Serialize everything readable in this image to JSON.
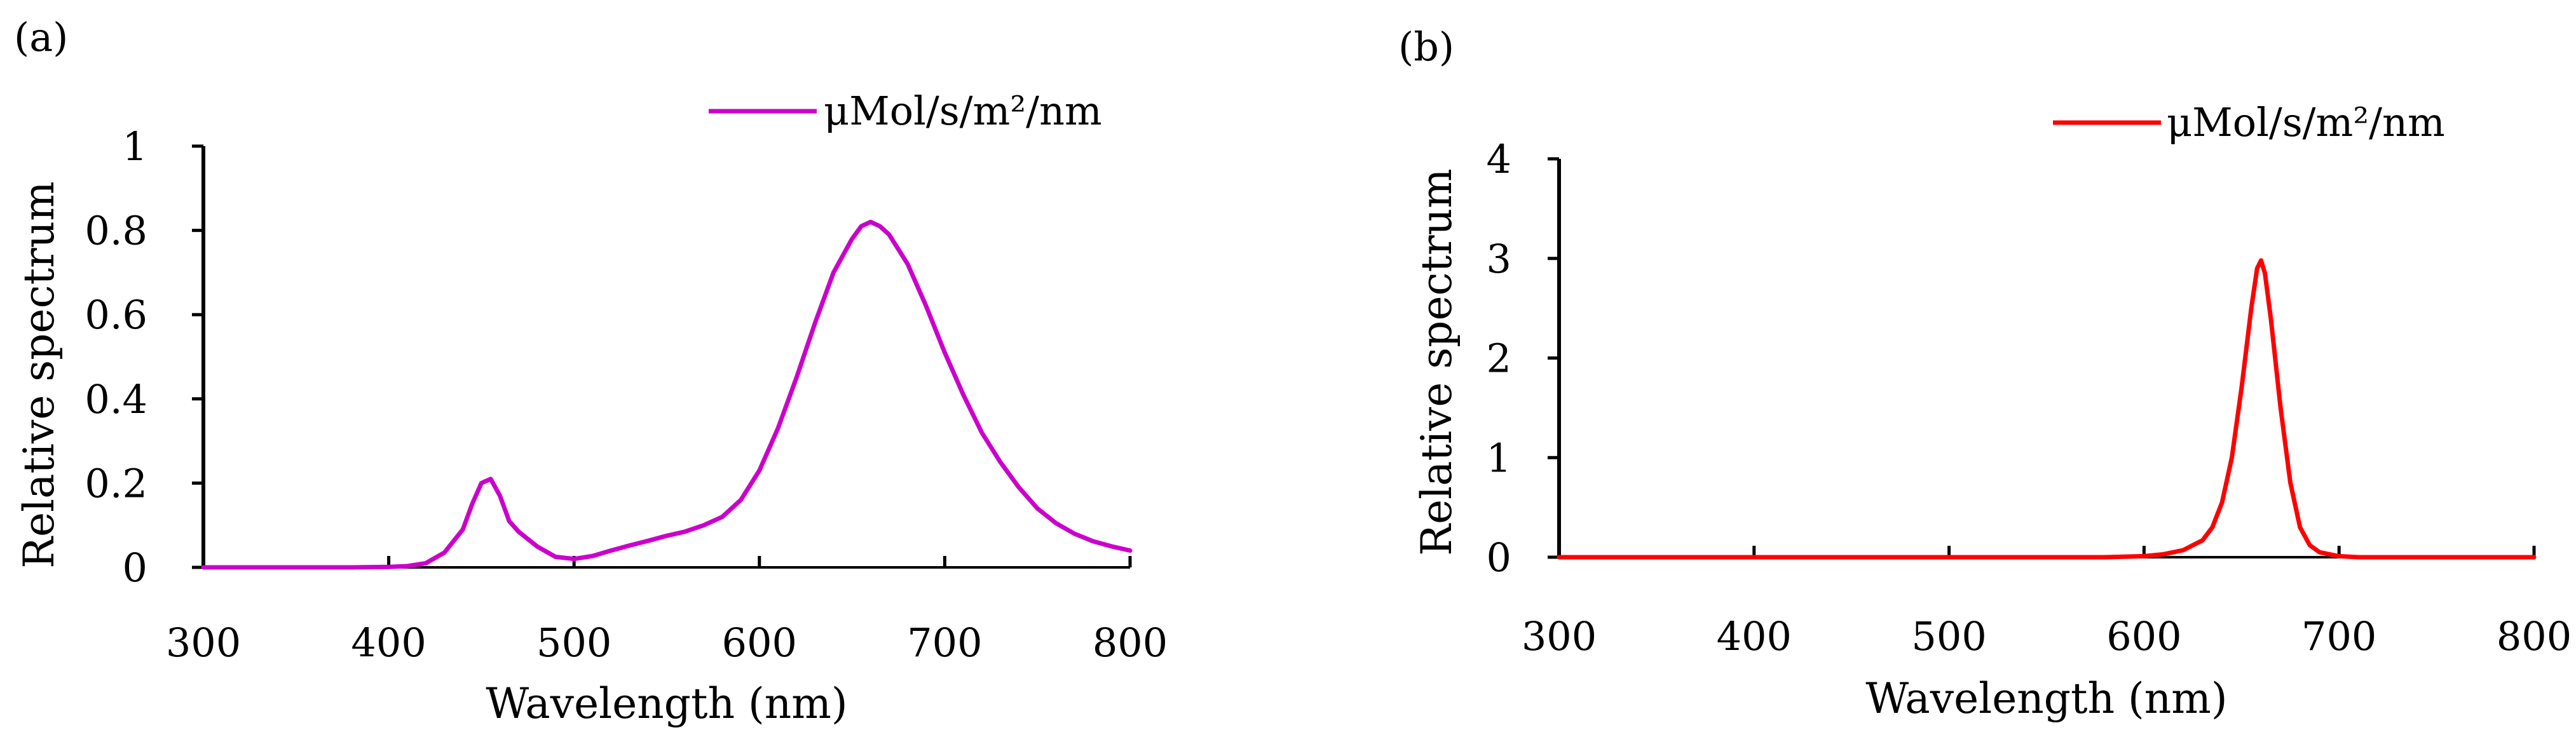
{
  "chart_data": [
    {
      "type": "line",
      "panel_label": "(a)",
      "xlabel": "Wavelength (nm)",
      "ylabel": "Relative spectrum",
      "xlim": [
        300,
        800
      ],
      "ylim": [
        0,
        1
      ],
      "xticks": [
        300,
        400,
        500,
        600,
        700,
        800
      ],
      "xtick_labels": [
        "300",
        "400",
        "500",
        "600",
        "700",
        "800"
      ],
      "yticks": [
        0,
        0.2,
        0.4,
        0.6,
        0.8,
        1
      ],
      "ytick_labels": [
        "0",
        "0.2",
        "0.4",
        "0.6",
        "0.8",
        "1"
      ],
      "grid": false,
      "legend_position": "top-right",
      "series": [
        {
          "name": "μMol/s/m²/nm",
          "color": "#cc00cc",
          "x": [
            300,
            380,
            400,
            410,
            420,
            430,
            440,
            445,
            450,
            455,
            460,
            465,
            470,
            480,
            490,
            500,
            510,
            520,
            530,
            540,
            550,
            560,
            570,
            580,
            590,
            600,
            610,
            620,
            630,
            640,
            650,
            655,
            660,
            665,
            670,
            680,
            690,
            700,
            710,
            720,
            730,
            740,
            750,
            760,
            770,
            780,
            790,
            800
          ],
          "y": [
            0,
            0,
            0.001,
            0.003,
            0.01,
            0.035,
            0.09,
            0.15,
            0.2,
            0.21,
            0.17,
            0.11,
            0.085,
            0.05,
            0.025,
            0.02,
            0.027,
            0.04,
            0.052,
            0.063,
            0.075,
            0.085,
            0.1,
            0.12,
            0.16,
            0.23,
            0.33,
            0.45,
            0.58,
            0.7,
            0.78,
            0.81,
            0.82,
            0.81,
            0.79,
            0.72,
            0.62,
            0.51,
            0.41,
            0.32,
            0.25,
            0.19,
            0.14,
            0.105,
            0.08,
            0.062,
            0.05,
            0.04
          ]
        }
      ]
    },
    {
      "type": "line",
      "panel_label": "(b)",
      "xlabel": "Wavelength (nm)",
      "ylabel": "Relative spectrum",
      "xlim": [
        300,
        800
      ],
      "ylim": [
        0,
        4
      ],
      "xticks": [
        300,
        400,
        500,
        600,
        700,
        800
      ],
      "xtick_labels": [
        "300",
        "400",
        "500",
        "600",
        "700",
        "800"
      ],
      "yticks": [
        0,
        1,
        2,
        3,
        4
      ],
      "ytick_labels": [
        "0",
        "1",
        "2",
        "3",
        "4"
      ],
      "grid": false,
      "legend_position": "top-right",
      "series": [
        {
          "name": "μMol/s/m²/nm",
          "color": "#ff0000",
          "x": [
            300,
            500,
            580,
            600,
            610,
            620,
            630,
            635,
            640,
            645,
            650,
            655,
            658,
            660,
            662,
            665,
            670,
            675,
            680,
            685,
            690,
            700,
            710,
            800
          ],
          "y": [
            0,
            0,
            0,
            0.01,
            0.03,
            0.07,
            0.17,
            0.3,
            0.55,
            1.0,
            1.7,
            2.5,
            2.9,
            2.98,
            2.85,
            2.4,
            1.5,
            0.75,
            0.3,
            0.12,
            0.05,
            0.01,
            0,
            0
          ]
        }
      ]
    }
  ]
}
